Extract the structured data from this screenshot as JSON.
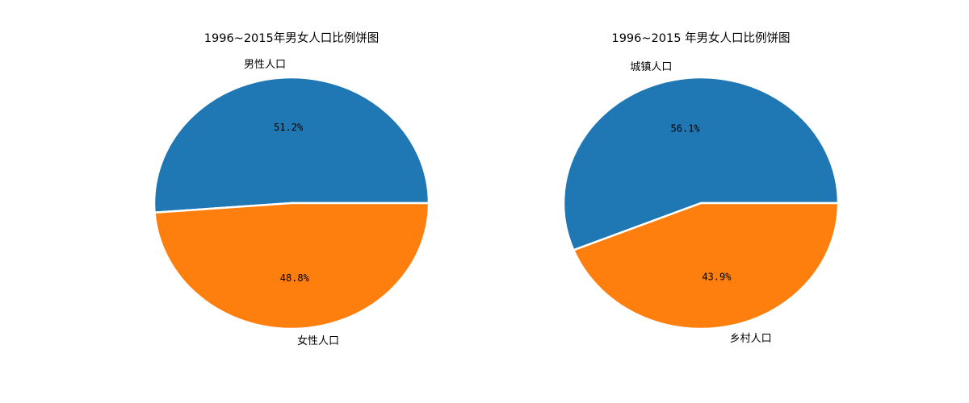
{
  "chart_data": [
    {
      "type": "pie",
      "title": "1996~2015年男女人口比例饼图",
      "slices": [
        {
          "label": "男性人口",
          "value": 51.2,
          "pct_label": "51.2%",
          "color": "#1f77b4"
        },
        {
          "label": "女性人口",
          "value": 48.8,
          "pct_label": "48.8%",
          "color": "#ff7f0e"
        }
      ]
    },
    {
      "type": "pie",
      "title": "1996~2015 年男女人口比例饼图",
      "slices": [
        {
          "label": "城镇人口",
          "value": 56.1,
          "pct_label": "56.1%",
          "color": "#1f77b4"
        },
        {
          "label": "乡村人口",
          "value": 43.9,
          "pct_label": "43.9%",
          "color": "#ff7f0e"
        }
      ]
    }
  ]
}
